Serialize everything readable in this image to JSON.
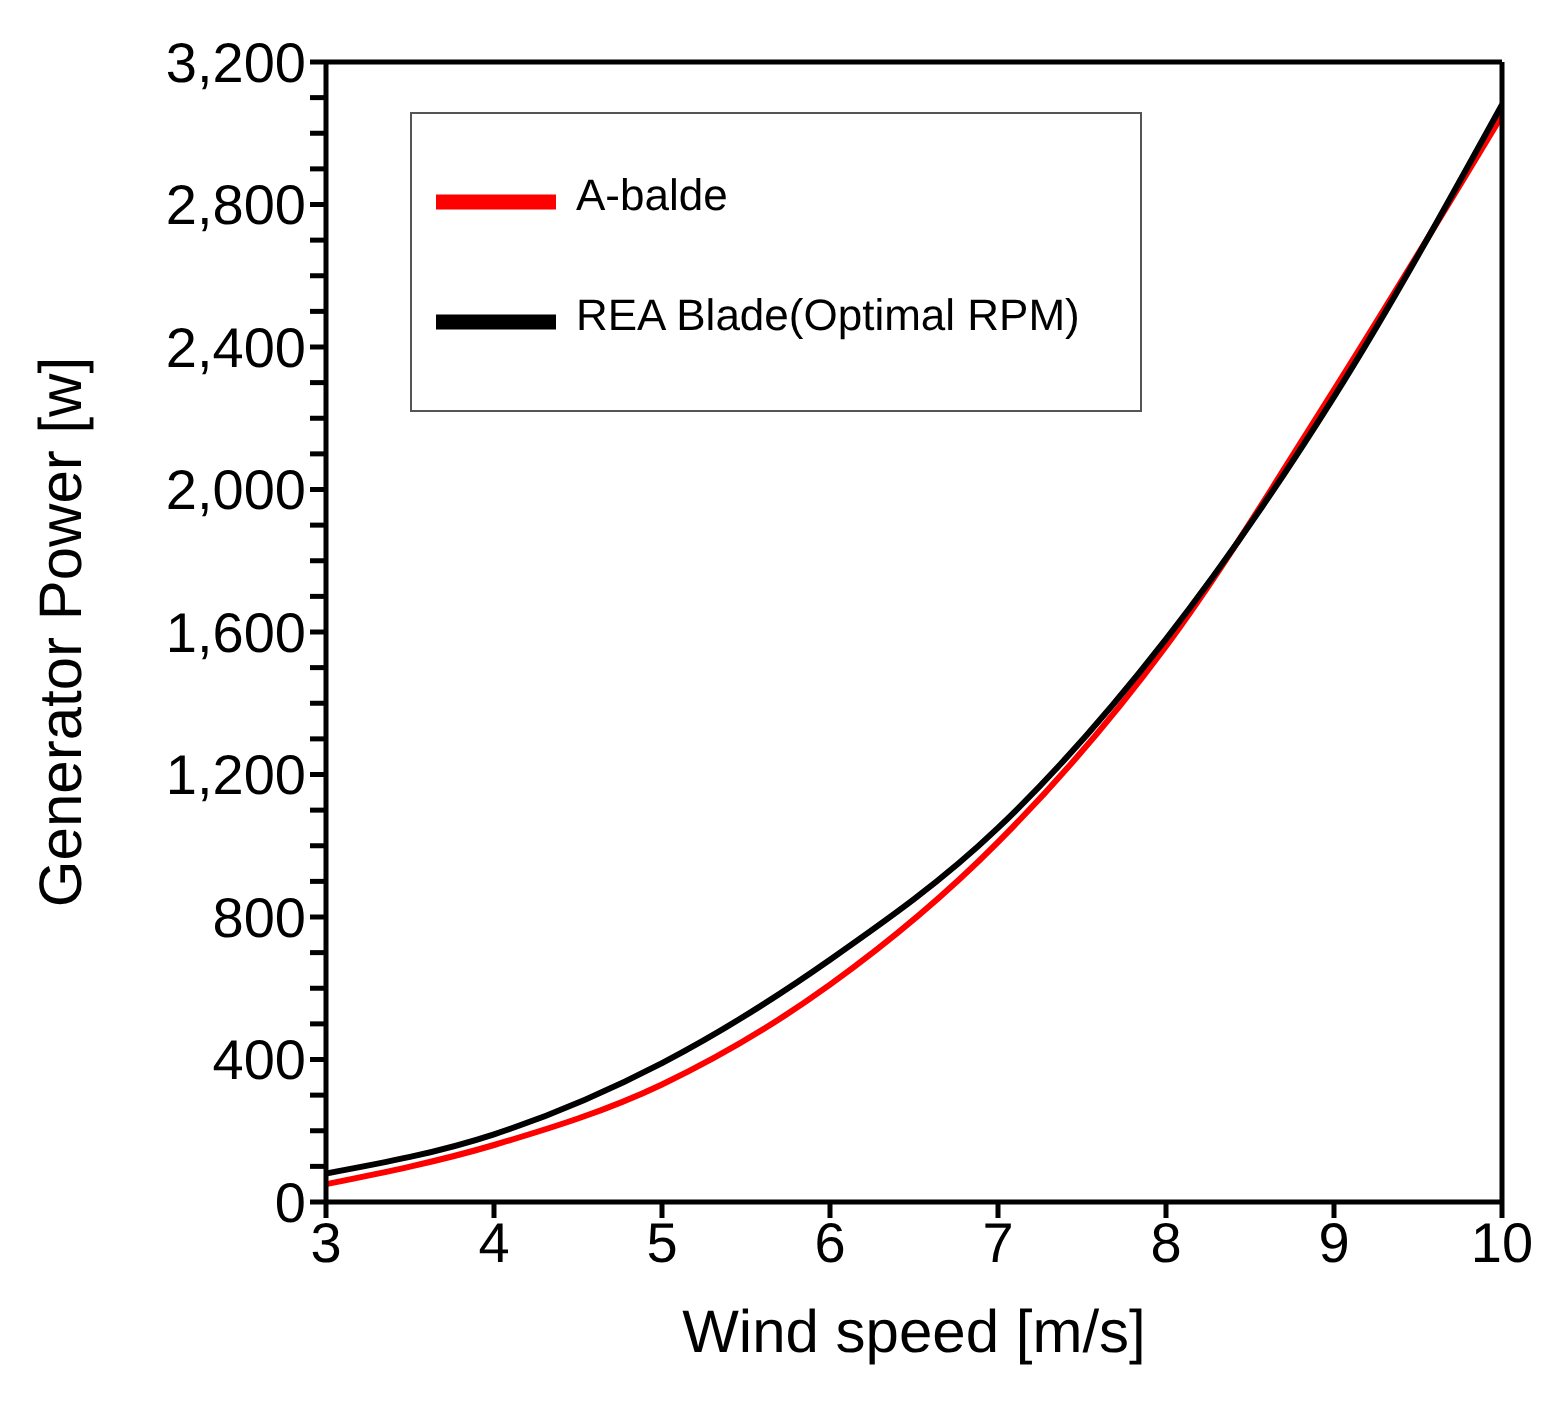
{
  "chart_data": {
    "type": "line",
    "xlabel": "Wind speed [m/s]",
    "ylabel": "Generator Power [w]",
    "x": [
      3,
      4,
      5,
      6,
      7,
      8,
      9,
      10
    ],
    "series": [
      {
        "name": "A-balde",
        "color": "#ff0000",
        "values": [
          50,
          160,
          330,
          610,
          1010,
          1560,
          2280,
          3050
        ]
      },
      {
        "name": "REA Blade(Optimal RPM)",
        "color": "#000000",
        "values": [
          80,
          190,
          390,
          680,
          1050,
          1580,
          2260,
          3080
        ]
      }
    ],
    "xlim": [
      3,
      10
    ],
    "xticks": [
      3,
      4,
      5,
      6,
      7,
      8,
      9,
      10
    ],
    "ylim": [
      0,
      3200
    ],
    "yticks": [
      0,
      {
        "value": 100,
        "label": null
      },
      {
        "value": 200,
        "label": null
      },
      {
        "value": 300,
        "label": null
      },
      400,
      {
        "value": 500,
        "label": null
      },
      {
        "value": 600,
        "label": null
      },
      {
        "value": 700,
        "label": null
      },
      800,
      {
        "value": 900,
        "label": null
      },
      {
        "value": 1000,
        "label": null
      },
      {
        "value": 1100,
        "label": null
      },
      {
        "value": 1200,
        "label": "1,200"
      },
      {
        "value": 1300,
        "label": null
      },
      {
        "value": 1400,
        "label": null
      },
      {
        "value": 1500,
        "label": null
      },
      {
        "value": 1600,
        "label": "1,600"
      },
      {
        "value": 1700,
        "label": null
      },
      {
        "value": 1800,
        "label": null
      },
      {
        "value": 1900,
        "label": null
      },
      {
        "value": 2000,
        "label": "2,000"
      },
      {
        "value": 2100,
        "label": null
      },
      {
        "value": 2200,
        "label": null
      },
      {
        "value": 2300,
        "label": null
      },
      {
        "value": 2400,
        "label": "2,400"
      },
      {
        "value": 2500,
        "label": null
      },
      {
        "value": 2600,
        "label": null
      },
      {
        "value": 2700,
        "label": null
      },
      {
        "value": 2800,
        "label": "2,800"
      },
      {
        "value": 2900,
        "label": null
      },
      {
        "value": 3000,
        "label": null
      },
      {
        "value": 3100,
        "label": null
      },
      {
        "value": 3200,
        "label": "3,200"
      }
    ],
    "legend": "top left",
    "grid": false,
    "marker": "none",
    "line_style": "solid"
  }
}
